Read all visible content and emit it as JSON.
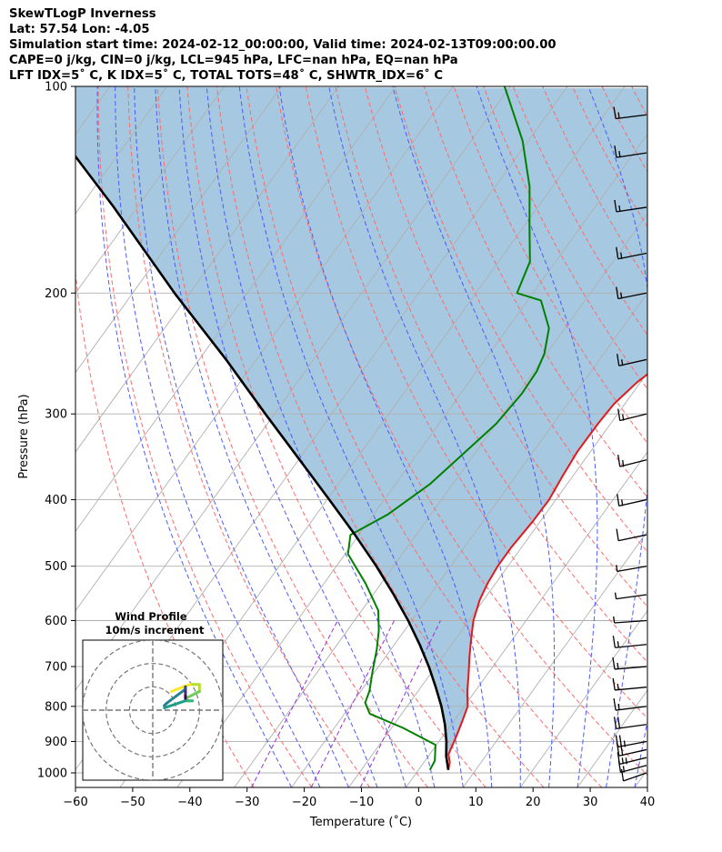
{
  "header": {
    "line1": "SkewTLogP Inverness",
    "line2": "Lat: 57.54   Lon: -4.05",
    "line3": "Simulation start time: 2024-02-12_00:00:00, Valid time: 2024-02-13T09:00:00.00",
    "line4": "CAPE=0 j/kg, CIN=0 j/kg, LCL=945 hPa, LFC=nan hPa, EQ=nan hPa",
    "line5": "LFT IDX=5˚ C, K IDX=5˚ C, TOTAL TOTS=48˚ C, SHWTR_IDX=6˚ C"
  },
  "chart_data": {
    "type": "skewt",
    "xlabel": "Temperature (˚C)",
    "ylabel": "Pressure (hPa)",
    "xlim": [
      -60,
      40
    ],
    "ylim": [
      1050,
      100
    ],
    "x_ticks": [
      -60,
      -50,
      -40,
      -30,
      -20,
      -10,
      0,
      10,
      20,
      30,
      40
    ],
    "y_ticks": [
      1000,
      900,
      800,
      700,
      600,
      500,
      400,
      300,
      200,
      100
    ],
    "grid": true,
    "colors": {
      "temperature": "#e31a1c",
      "dewpoint": "#008000",
      "parcel": "#000000",
      "shading": "#a6c8e0",
      "dry_adiabats": "#ff6b6b",
      "moist_adiabats": "#4d5bff",
      "mixing_ratio": "#9b30d0",
      "isotherms": "#b0b0b0"
    },
    "series": [
      {
        "name": "",
        "role": "temperature",
        "points": [
          [
            5.2,
            990
          ],
          [
            4.5,
            965
          ],
          [
            3.3,
            940
          ],
          [
            2.8,
            910
          ],
          [
            2.3,
            880
          ],
          [
            1.5,
            840
          ],
          [
            0.6,
            800
          ],
          [
            -1.4,
            760
          ],
          [
            -3.2,
            720
          ],
          [
            -5.2,
            680
          ],
          [
            -7.2,
            640
          ],
          [
            -9.2,
            600
          ],
          [
            -10.7,
            560
          ],
          [
            -11.4,
            530
          ],
          [
            -11.8,
            500
          ],
          [
            -11.8,
            470
          ],
          [
            -11.3,
            430
          ],
          [
            -11.2,
            400
          ],
          [
            -11.8,
            370
          ],
          [
            -12.3,
            340
          ],
          [
            -12.2,
            310
          ],
          [
            -11.9,
            290
          ],
          [
            -10.6,
            270
          ],
          [
            -8.3,
            250
          ],
          [
            -5.2,
            230
          ],
          [
            -0.9,
            210
          ],
          [
            1.7,
            200
          ],
          [
            5.6,
            185
          ],
          [
            8.6,
            170
          ],
          [
            9.9,
            157
          ],
          [
            10.2,
            140
          ],
          [
            10.5,
            125
          ],
          [
            12.4,
            112
          ],
          [
            14.1,
            106
          ],
          [
            15.8,
            101
          ]
        ]
      },
      {
        "name": "",
        "role": "dewpoint",
        "points": [
          [
            2.0,
            990
          ],
          [
            1.7,
            960
          ],
          [
            -0.2,
            910
          ],
          [
            -8.0,
            860
          ],
          [
            -15.6,
            820
          ],
          [
            -17.8,
            790
          ],
          [
            -18.5,
            760
          ],
          [
            -20.5,
            710
          ],
          [
            -22.5,
            660
          ],
          [
            -24.5,
            620
          ],
          [
            -27.1,
            580
          ],
          [
            -32.7,
            530
          ],
          [
            -39.5,
            480
          ],
          [
            -41.5,
            450
          ],
          [
            -37.5,
            420
          ],
          [
            -34.0,
            380
          ],
          [
            -31.8,
            340
          ],
          [
            -30.0,
            310
          ],
          [
            -29.3,
            280
          ],
          [
            -29.5,
            260
          ],
          [
            -30.4,
            245
          ],
          [
            -32.8,
            225
          ],
          [
            -37.7,
            205
          ],
          [
            -42.8,
            200
          ],
          [
            -44.5,
            180
          ],
          [
            -49.0,
            160
          ],
          [
            -54.0,
            140
          ],
          [
            -61.0,
            120
          ],
          [
            -71.0,
            100
          ]
        ]
      },
      {
        "name": "",
        "role": "parcel",
        "points": [
          [
            5.2,
            990
          ],
          [
            3.1,
            945
          ],
          [
            1.3,
            900
          ],
          [
            -1.1,
            850
          ],
          [
            -4.0,
            800
          ],
          [
            -7.4,
            750
          ],
          [
            -11.2,
            700
          ],
          [
            -15.6,
            650
          ],
          [
            -20.6,
            600
          ],
          [
            -26.4,
            550
          ],
          [
            -33.0,
            500
          ],
          [
            -40.7,
            450
          ],
          [
            -49.6,
            400
          ],
          [
            -59.8,
            350
          ],
          [
            -71.6,
            300
          ],
          [
            -85.3,
            250
          ],
          [
            -102.7,
            200
          ],
          [
            -124.1,
            150
          ],
          [
            -155.3,
            100
          ]
        ]
      }
    ],
    "wind_barbs": {
      "pressures": [
        1000,
        975,
        950,
        925,
        900,
        850,
        800,
        750,
        700,
        650,
        600,
        550,
        500,
        450,
        400,
        350,
        300,
        250,
        200,
        175,
        150,
        125,
        110
      ],
      "u": [
        8,
        13,
        16,
        17,
        20,
        20,
        14,
        15,
        17,
        14,
        5,
        5,
        6,
        10,
        14,
        14,
        14,
        14,
        14,
        14,
        14,
        14,
        14
      ],
      "v": [
        8,
        10,
        11,
        11,
        11,
        8,
        5,
        4,
        4,
        4,
        1,
        2,
        3,
        6,
        9,
        10,
        10,
        9,
        8,
        8,
        6,
        6,
        5
      ]
    },
    "hodograph": {
      "title": "Wind Profile",
      "subtitle": "10m/s increment",
      "range": [
        -30,
        30
      ],
      "rings": [
        10,
        20,
        30
      ]
    }
  }
}
